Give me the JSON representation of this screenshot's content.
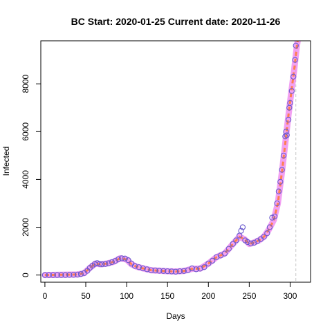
{
  "chart_data": {
    "type": "scatter",
    "title": "BC Start:  2020-01-25   Current date:  2020-11-26",
    "xlabel": "Days",
    "ylabel": "Infected",
    "xlim": [
      -5,
      325
    ],
    "ylim": [
      -300,
      9800
    ],
    "xticks": [
      0,
      50,
      100,
      150,
      200,
      250,
      300
    ],
    "yticks": [
      0,
      2000,
      4000,
      6000,
      8000
    ],
    "grid": false,
    "legend": "none",
    "colors": {
      "band": "#ee82ee",
      "curve": "#ff7f50",
      "points": "#6a5acd",
      "marker_line": "#c8c8c8"
    },
    "marker_x": 307,
    "curve": {
      "x": [
        0,
        40,
        48,
        55,
        62,
        68,
        76,
        84,
        92,
        100,
        106,
        112,
        120,
        130,
        140,
        150,
        160,
        170,
        180,
        190,
        200,
        210,
        220,
        230,
        238,
        244,
        250,
        255,
        262,
        268,
        274,
        280,
        285,
        290,
        294,
        298,
        302,
        305,
        308,
        312
      ],
      "y": [
        0,
        20,
        80,
        300,
        480,
        450,
        480,
        550,
        700,
        650,
        450,
        350,
        280,
        200,
        180,
        160,
        150,
        170,
        260,
        270,
        480,
        750,
        900,
        1300,
        1600,
        1500,
        1300,
        1350,
        1450,
        1600,
        1900,
        2300,
        3000,
        4300,
        5500,
        6700,
        7800,
        8600,
        9500,
        10500
      ]
    },
    "points": [
      {
        "x": 0,
        "y": 0
      },
      {
        "x": 5,
        "y": 0
      },
      {
        "x": 10,
        "y": 0
      },
      {
        "x": 15,
        "y": 0
      },
      {
        "x": 20,
        "y": 0
      },
      {
        "x": 25,
        "y": 0
      },
      {
        "x": 30,
        "y": 5
      },
      {
        "x": 35,
        "y": 10
      },
      {
        "x": 40,
        "y": 20
      },
      {
        "x": 44,
        "y": 40
      },
      {
        "x": 48,
        "y": 80
      },
      {
        "x": 52,
        "y": 180
      },
      {
        "x": 55,
        "y": 300
      },
      {
        "x": 58,
        "y": 390
      },
      {
        "x": 61,
        "y": 460
      },
      {
        "x": 64,
        "y": 500
      },
      {
        "x": 67,
        "y": 460
      },
      {
        "x": 70,
        "y": 450
      },
      {
        "x": 74,
        "y": 460
      },
      {
        "x": 78,
        "y": 490
      },
      {
        "x": 82,
        "y": 540
      },
      {
        "x": 86,
        "y": 590
      },
      {
        "x": 90,
        "y": 660
      },
      {
        "x": 94,
        "y": 700
      },
      {
        "x": 98,
        "y": 690
      },
      {
        "x": 102,
        "y": 620
      },
      {
        "x": 106,
        "y": 480
      },
      {
        "x": 110,
        "y": 380
      },
      {
        "x": 115,
        "y": 330
      },
      {
        "x": 120,
        "y": 280
      },
      {
        "x": 125,
        "y": 240
      },
      {
        "x": 130,
        "y": 200
      },
      {
        "x": 135,
        "y": 190
      },
      {
        "x": 140,
        "y": 180
      },
      {
        "x": 145,
        "y": 170
      },
      {
        "x": 150,
        "y": 160
      },
      {
        "x": 155,
        "y": 150
      },
      {
        "x": 160,
        "y": 140
      },
      {
        "x": 165,
        "y": 160
      },
      {
        "x": 170,
        "y": 170
      },
      {
        "x": 175,
        "y": 200
      },
      {
        "x": 180,
        "y": 280
      },
      {
        "x": 185,
        "y": 240
      },
      {
        "x": 190,
        "y": 270
      },
      {
        "x": 195,
        "y": 330
      },
      {
        "x": 200,
        "y": 480
      },
      {
        "x": 205,
        "y": 600
      },
      {
        "x": 210,
        "y": 750
      },
      {
        "x": 215,
        "y": 820
      },
      {
        "x": 220,
        "y": 900
      },
      {
        "x": 225,
        "y": 1100
      },
      {
        "x": 230,
        "y": 1300
      },
      {
        "x": 234,
        "y": 1450
      },
      {
        "x": 238,
        "y": 1650
      },
      {
        "x": 240,
        "y": 1850
      },
      {
        "x": 242,
        "y": 2000
      },
      {
        "x": 245,
        "y": 1450
      },
      {
        "x": 248,
        "y": 1380
      },
      {
        "x": 252,
        "y": 1320
      },
      {
        "x": 256,
        "y": 1350
      },
      {
        "x": 260,
        "y": 1420
      },
      {
        "x": 264,
        "y": 1500
      },
      {
        "x": 268,
        "y": 1600
      },
      {
        "x": 272,
        "y": 1750
      },
      {
        "x": 275,
        "y": 2000
      },
      {
        "x": 278,
        "y": 2400
      },
      {
        "x": 281,
        "y": 2450
      },
      {
        "x": 284,
        "y": 3000
      },
      {
        "x": 286,
        "y": 3500
      },
      {
        "x": 288,
        "y": 3900
      },
      {
        "x": 290,
        "y": 4400
      },
      {
        "x": 292,
        "y": 5000
      },
      {
        "x": 294,
        "y": 5800
      },
      {
        "x": 295,
        "y": 6000
      },
      {
        "x": 296,
        "y": 5850
      },
      {
        "x": 298,
        "y": 6500
      },
      {
        "x": 299,
        "y": 7000
      },
      {
        "x": 300,
        "y": 7200
      },
      {
        "x": 302,
        "y": 7700
      },
      {
        "x": 304,
        "y": 8300
      },
      {
        "x": 306,
        "y": 9000
      },
      {
        "x": 307,
        "y": 9600
      }
    ]
  }
}
